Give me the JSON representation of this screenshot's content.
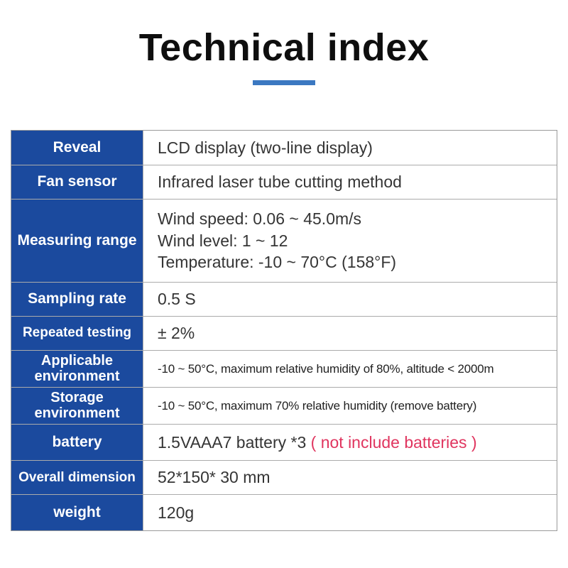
{
  "page": {
    "title": "Technical index"
  },
  "colors": {
    "label_column_blue": "#1b4a9e",
    "divider_blue": "#3b78c1",
    "note_red": "#e0355f",
    "border_gray": "#9a9a9a",
    "value_text": "#353535"
  },
  "table": {
    "rows": [
      {
        "label": "Reveal",
        "value": "LCD display (two-line display)"
      },
      {
        "label": "Fan sensor",
        "value": "Infrared laser tube cutting method"
      },
      {
        "label": "Measuring range",
        "lines": [
          "Wind speed: 0.06 ~ 45.0m/s",
          "Wind level: 1 ~ 12",
          "Temperature: -10 ~ 70°C (158°F)"
        ]
      },
      {
        "label": "Sampling rate",
        "value": "0.5 S"
      },
      {
        "label": "Repeated testing",
        "value": "± 2%"
      },
      {
        "label": "Applicable environment",
        "value": "-10 ~ 50°C, maximum relative humidity of 80%, altitude < 2000m"
      },
      {
        "label": "Storage environment",
        "value": "-10 ~ 50°C, maximum 70% relative humidity (remove battery)"
      },
      {
        "label": "battery",
        "value": "1.5VAAA7 battery *3 ",
        "note": "( not include batteries )"
      },
      {
        "label": "Overall dimension",
        "value": "52*150* 30 mm"
      },
      {
        "label": "weight",
        "value": "120g"
      }
    ]
  }
}
